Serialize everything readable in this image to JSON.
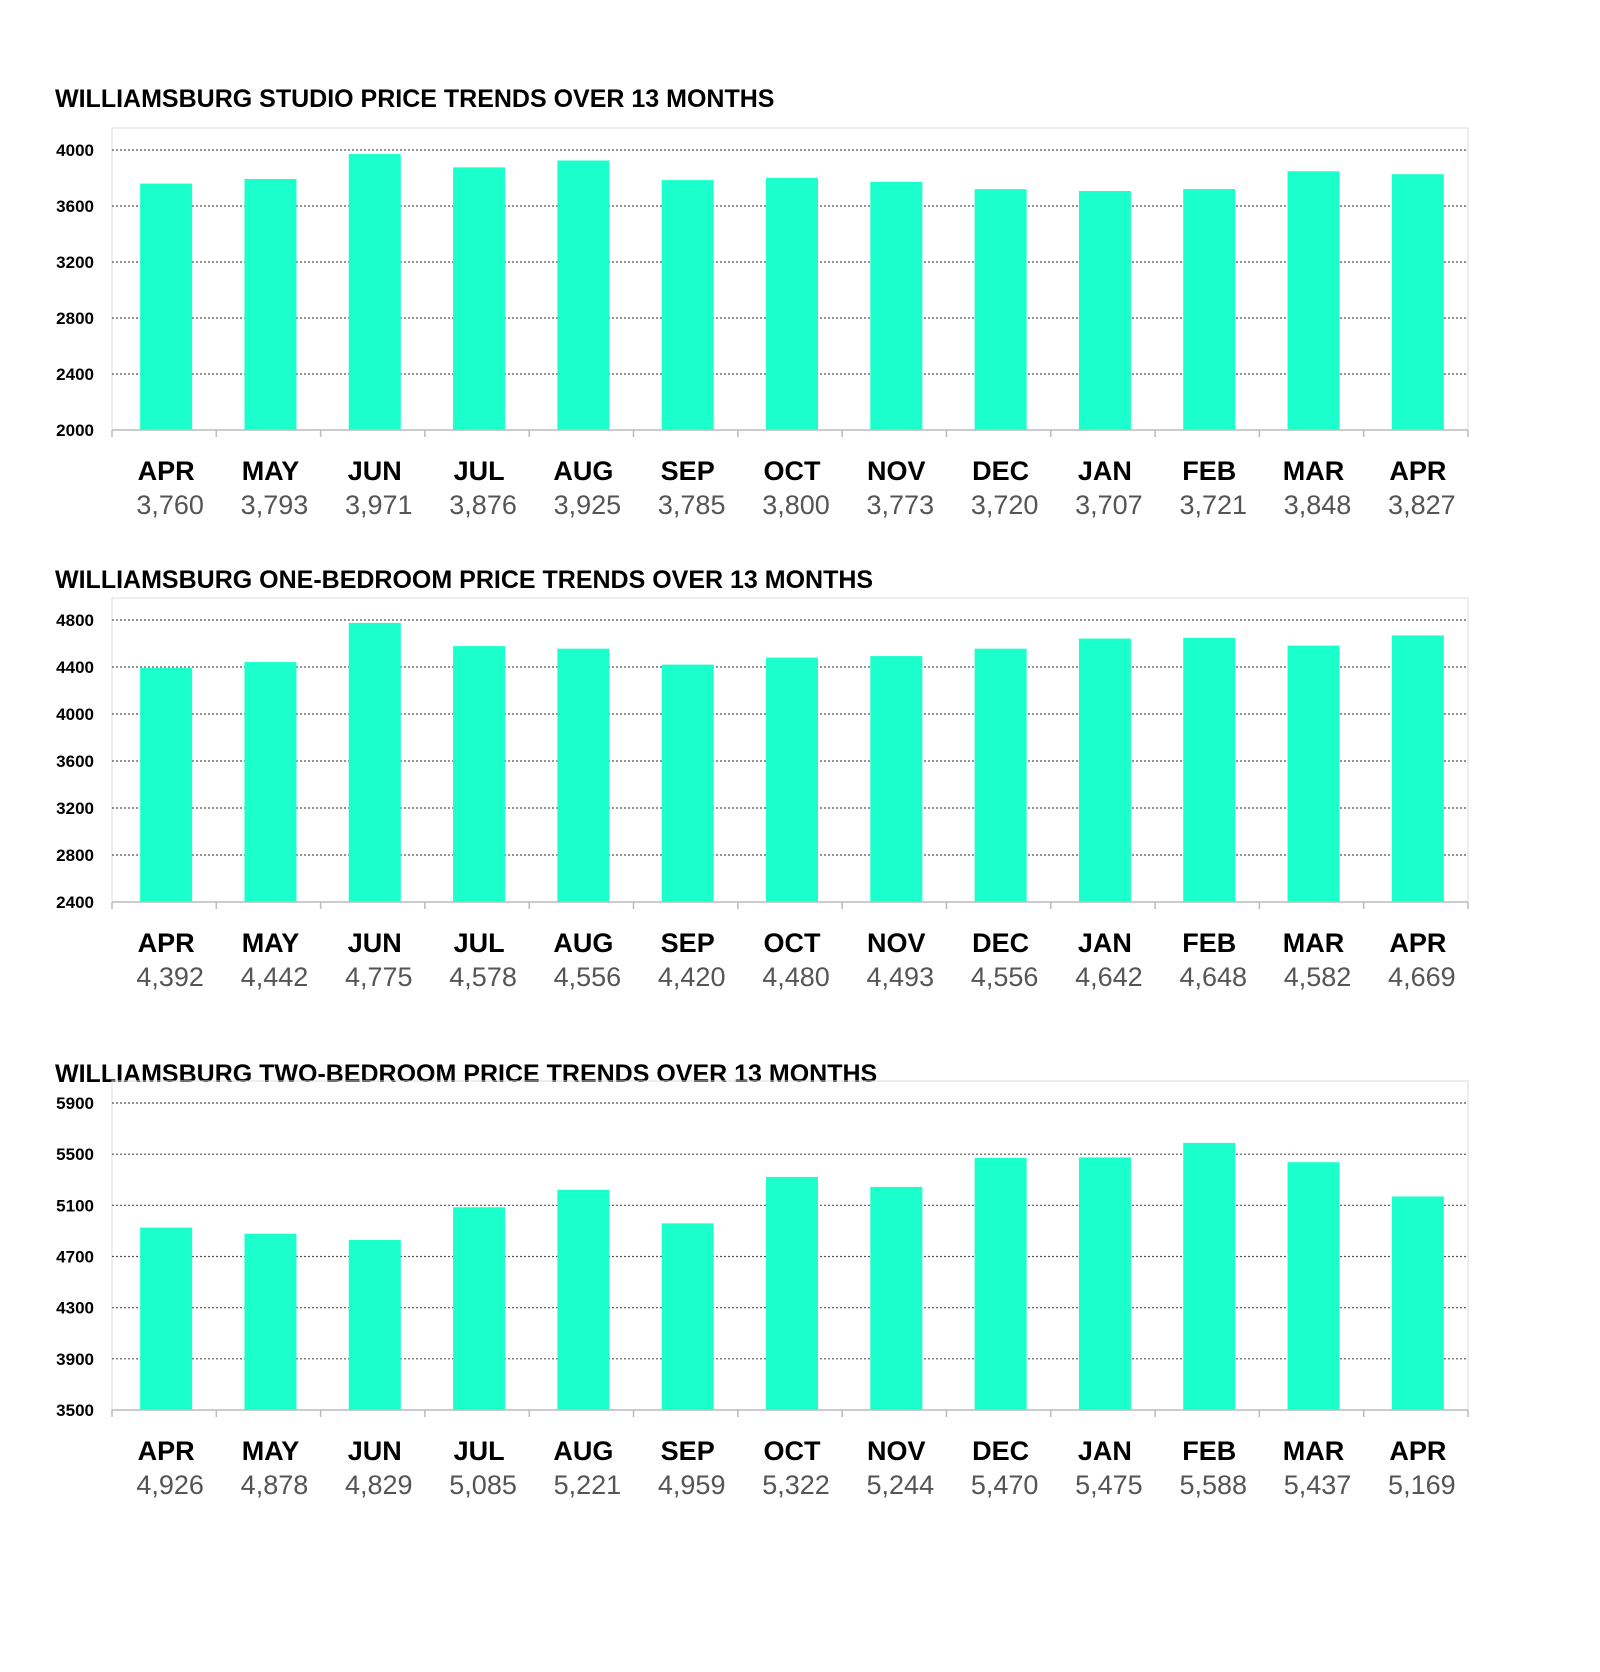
{
  "style": {
    "bar_color": "#1affcc",
    "grid_color": "#555555",
    "axis_color": "#bbbbbb"
  },
  "chart_data": [
    {
      "type": "bar",
      "title": "WILLIAMSBURG STUDIO PRICE TRENDS OVER 13 MONTHS",
      "categories": [
        "APR",
        "MAY",
        "JUN",
        "JUL",
        "AUG",
        "SEP",
        "OCT",
        "NOV",
        "DEC",
        "JAN",
        "FEB",
        "MAR",
        "APR"
      ],
      "values": [
        3760,
        3793,
        3971,
        3876,
        3925,
        3785,
        3800,
        3773,
        3720,
        3707,
        3721,
        3848,
        3827
      ],
      "value_labels": [
        "3,760",
        "3,793",
        "3,971",
        "3,876",
        "3,925",
        "3,785",
        "3,800",
        "3,773",
        "3,720",
        "3,707",
        "3,721",
        "3,848",
        "3,827"
      ],
      "ylim": [
        2000,
        4000
      ],
      "yticks": [
        2000,
        2400,
        2800,
        3200,
        3600,
        4000
      ],
      "grid": true
    },
    {
      "type": "bar",
      "title": "WILLIAMSBURG ONE-BEDROOM PRICE TRENDS OVER 13 MONTHS",
      "categories": [
        "APR",
        "MAY",
        "JUN",
        "JUL",
        "AUG",
        "SEP",
        "OCT",
        "NOV",
        "DEC",
        "JAN",
        "FEB",
        "MAR",
        "APR"
      ],
      "values": [
        4392,
        4442,
        4775,
        4578,
        4556,
        4420,
        4480,
        4493,
        4556,
        4642,
        4648,
        4582,
        4669
      ],
      "value_labels": [
        "4,392",
        "4,442",
        "4,775",
        "4,578",
        "4,556",
        "4,420",
        "4,480",
        "4,493",
        "4,556",
        "4,642",
        "4,648",
        "4,582",
        "4,669"
      ],
      "ylim": [
        2400,
        4800
      ],
      "yticks": [
        2400,
        2800,
        3200,
        3600,
        4000,
        4400,
        4800
      ],
      "grid": true
    },
    {
      "type": "bar",
      "title": "WILLIAMSBURG TWO-BEDROOM PRICE TRENDS OVER 13 MONTHS",
      "categories": [
        "APR",
        "MAY",
        "JUN",
        "JUL",
        "AUG",
        "SEP",
        "OCT",
        "NOV",
        "DEC",
        "JAN",
        "FEB",
        "MAR",
        "APR"
      ],
      "values": [
        4926,
        4878,
        4829,
        5085,
        5221,
        4959,
        5322,
        5244,
        5470,
        5475,
        5588,
        5437,
        5169
      ],
      "value_labels": [
        "4,926",
        "4,878",
        "4,829",
        "5,085",
        "5,221",
        "4,959",
        "5,322",
        "5,244",
        "5,470",
        "5,475",
        "5,588",
        "5,437",
        "5,169"
      ],
      "ylim": [
        3500,
        5900
      ],
      "yticks": [
        3500,
        3900,
        4300,
        4700,
        5100,
        5500,
        5900
      ],
      "grid": true
    }
  ]
}
